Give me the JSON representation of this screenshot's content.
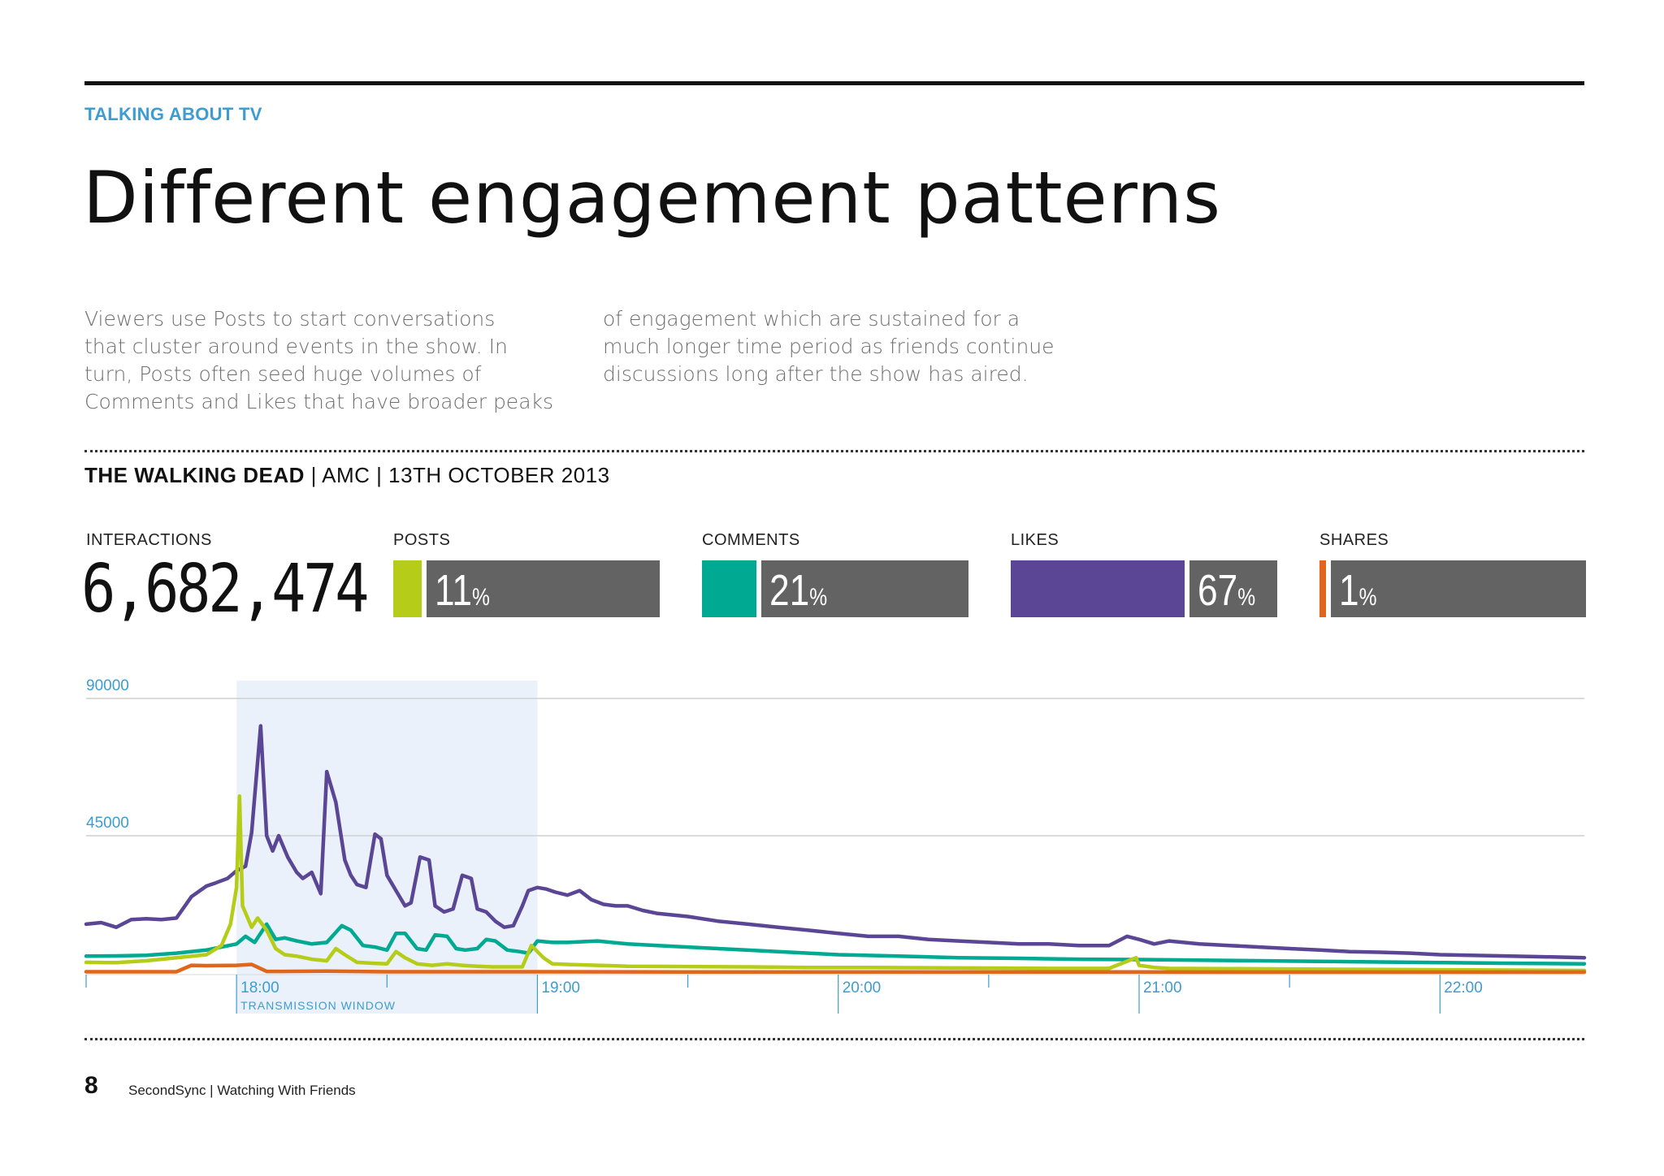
{
  "header": {
    "kicker": "TALKING ABOUT TV",
    "title": "Different engagement patterns"
  },
  "intro": {
    "col1": "Viewers use Posts to start conversations\nthat cluster around events in the show. In\nturn, Posts often seed huge volumes of\nComments and Likes that have broader peaks",
    "col2": "of engagement which are sustained for a\nmuch longer time period as friends continue\ndiscussions long after the show has aired."
  },
  "show": {
    "name": "THE WALKING DEAD",
    "details": " | AMC | 13TH OCTOBER 2013"
  },
  "stats": {
    "interactions_label": "INTERACTIONS",
    "interactions_value": "6,682,474",
    "items": [
      {
        "label": "POSTS",
        "pct": 11,
        "pct_text": "11",
        "color": "#b5cc18"
      },
      {
        "label": "COMMENTS",
        "pct": 21,
        "pct_text": "21",
        "color": "#00a991"
      },
      {
        "label": "LIKES",
        "pct": 67,
        "pct_text": "67",
        "color": "#5b4696"
      },
      {
        "label": "SHARES",
        "pct": 1,
        "pct_text": "1",
        "color": "#e0661c"
      }
    ],
    "pct_symbol": "%"
  },
  "chart_data": {
    "type": "line",
    "title": "",
    "xlabel": "",
    "ylabel": "",
    "ylim": [
      0,
      90000
    ],
    "yticks": [
      45000,
      90000
    ],
    "ytick_labels": [
      "45000",
      "90000"
    ],
    "x_labels": [
      {
        "t": 18.0,
        "label": "18:00"
      },
      {
        "t": 19.0,
        "label": "19:00"
      },
      {
        "t": 20.0,
        "label": "20:00"
      },
      {
        "t": 21.0,
        "label": "21:00"
      },
      {
        "t": 22.0,
        "label": "22:00"
      }
    ],
    "xlim": [
      17.5,
      22.48
    ],
    "minor_ticks": [
      17.5,
      18.5,
      19.5,
      20.5,
      21.5
    ],
    "grid": true,
    "band": {
      "from": 18.0,
      "to": 19.0,
      "label": "TRANSMISSION WINDOW",
      "color": "#eaf1fa"
    },
    "axis_color": "#3d9cd2",
    "series": [
      {
        "name": "Likes",
        "color": "#5b4696",
        "x": [
          17.5,
          17.55,
          17.6,
          17.65,
          17.7,
          17.75,
          17.8,
          17.85,
          17.9,
          17.93,
          17.97,
          18.0,
          18.03,
          18.05,
          18.08,
          18.1,
          18.12,
          18.14,
          18.17,
          18.2,
          18.22,
          18.25,
          18.28,
          18.3,
          18.33,
          18.36,
          18.38,
          18.4,
          18.43,
          18.46,
          18.48,
          18.5,
          18.53,
          18.56,
          18.58,
          18.61,
          18.64,
          18.66,
          18.69,
          18.72,
          18.75,
          18.78,
          18.8,
          18.83,
          18.86,
          18.89,
          18.92,
          18.95,
          18.97,
          19.0,
          19.03,
          19.06,
          19.1,
          19.14,
          19.18,
          19.22,
          19.26,
          19.3,
          19.35,
          19.4,
          19.5,
          19.6,
          19.7,
          19.8,
          19.9,
          20.0,
          20.1,
          20.2,
          20.3,
          20.4,
          20.5,
          20.6,
          20.7,
          20.8,
          20.9,
          20.96,
          21.0,
          21.05,
          21.1,
          21.2,
          21.3,
          21.4,
          21.5,
          21.6,
          21.7,
          21.8,
          21.9,
          22.0,
          22.1,
          22.2,
          22.3,
          22.4,
          22.48
        ],
        "y": [
          16000,
          16500,
          15000,
          17500,
          17800,
          17500,
          18000,
          25000,
          28500,
          29500,
          31000,
          33500,
          35000,
          46000,
          81000,
          45000,
          40000,
          45000,
          38000,
          33000,
          31000,
          33000,
          26000,
          66000,
          56000,
          37000,
          32000,
          29000,
          28000,
          45500,
          44000,
          32000,
          27000,
          22000,
          23000,
          38000,
          37000,
          22000,
          20000,
          21000,
          32000,
          31000,
          21000,
          20000,
          17000,
          15000,
          15500,
          22000,
          27000,
          28000,
          27500,
          26500,
          25500,
          27000,
          24000,
          22500,
          22000,
          22000,
          20500,
          19500,
          18500,
          17000,
          16000,
          15000,
          14000,
          13000,
          12000,
          12000,
          11000,
          10500,
          10000,
          9500,
          9500,
          9000,
          9000,
          12000,
          11000,
          9500,
          10500,
          9500,
          9000,
          8500,
          8000,
          7500,
          7000,
          6800,
          6500,
          6000,
          5800,
          5600,
          5400,
          5200,
          5000
        ]
      },
      {
        "name": "Comments",
        "color": "#00a991",
        "x": [
          17.5,
          17.6,
          17.7,
          17.8,
          17.9,
          18.0,
          18.03,
          18.06,
          18.1,
          18.13,
          18.16,
          18.2,
          18.25,
          18.3,
          18.35,
          18.38,
          18.42,
          18.46,
          18.5,
          18.53,
          18.56,
          18.6,
          18.63,
          18.66,
          18.7,
          18.73,
          18.76,
          18.8,
          18.83,
          18.86,
          18.9,
          18.94,
          18.97,
          19.0,
          19.05,
          19.1,
          19.2,
          19.3,
          19.4,
          19.6,
          19.8,
          20.0,
          20.2,
          20.4,
          20.6,
          20.8,
          21.0,
          21.2,
          21.4,
          21.6,
          21.8,
          22.0,
          22.2,
          22.48
        ],
        "y": [
          5500,
          5600,
          5800,
          6500,
          7500,
          9500,
          12000,
          10000,
          16000,
          11000,
          11500,
          10500,
          9500,
          10000,
          15500,
          14000,
          9000,
          8500,
          7500,
          13000,
          13000,
          8000,
          7500,
          12500,
          12000,
          8000,
          7500,
          8000,
          11000,
          10500,
          7500,
          7000,
          6500,
          10500,
          10000,
          10000,
          10500,
          9500,
          9000,
          8000,
          7000,
          6000,
          5500,
          5000,
          4800,
          4500,
          4400,
          4200,
          4000,
          3800,
          3600,
          3400,
          3200,
          3000
        ]
      },
      {
        "name": "Posts",
        "color": "#b5cc18",
        "x": [
          17.5,
          17.6,
          17.7,
          17.8,
          17.9,
          17.95,
          17.98,
          18.0,
          18.01,
          18.02,
          18.05,
          18.07,
          18.1,
          18.13,
          18.16,
          18.2,
          18.25,
          18.3,
          18.33,
          18.36,
          18.4,
          18.45,
          18.5,
          18.53,
          18.56,
          18.6,
          18.65,
          18.7,
          18.75,
          18.8,
          18.85,
          18.9,
          18.95,
          18.98,
          19.02,
          19.05,
          19.1,
          19.2,
          19.3,
          19.5,
          19.7,
          19.9,
          20.1,
          20.3,
          20.5,
          20.7,
          20.9,
          20.99,
          21.0,
          21.05,
          21.1,
          21.3,
          21.5,
          21.7,
          21.9,
          22.1,
          22.3,
          22.48
        ],
        "y": [
          3500,
          3400,
          4000,
          5000,
          6000,
          9000,
          16000,
          28000,
          58000,
          22000,
          15000,
          18000,
          14000,
          8000,
          6000,
          5500,
          4500,
          4000,
          8000,
          6000,
          3500,
          3200,
          3000,
          7000,
          5000,
          3000,
          2500,
          3000,
          2500,
          2200,
          2000,
          2000,
          2000,
          9000,
          5000,
          3000,
          2800,
          2500,
          2200,
          2100,
          2000,
          1800,
          1800,
          1700,
          1600,
          1500,
          1500,
          5000,
          2500,
          1800,
          1500,
          1400,
          1300,
          1200,
          1100,
          1000,
          900,
          800
        ]
      },
      {
        "name": "Shares",
        "color": "#e0661c",
        "x": [
          17.5,
          17.8,
          17.85,
          17.9,
          18.0,
          18.05,
          18.1,
          18.15,
          18.3,
          18.5,
          19.0,
          19.5,
          20.0,
          20.5,
          21.0,
          21.5,
          22.0,
          22.48
        ],
        "y": [
          400,
          400,
          2500,
          2400,
          2500,
          2800,
          500,
          500,
          600,
          400,
          400,
          350,
          350,
          320,
          350,
          300,
          300,
          300
        ]
      }
    ]
  },
  "footer": {
    "page_number": "8",
    "text": "SecondSync | Watching With Friends"
  }
}
